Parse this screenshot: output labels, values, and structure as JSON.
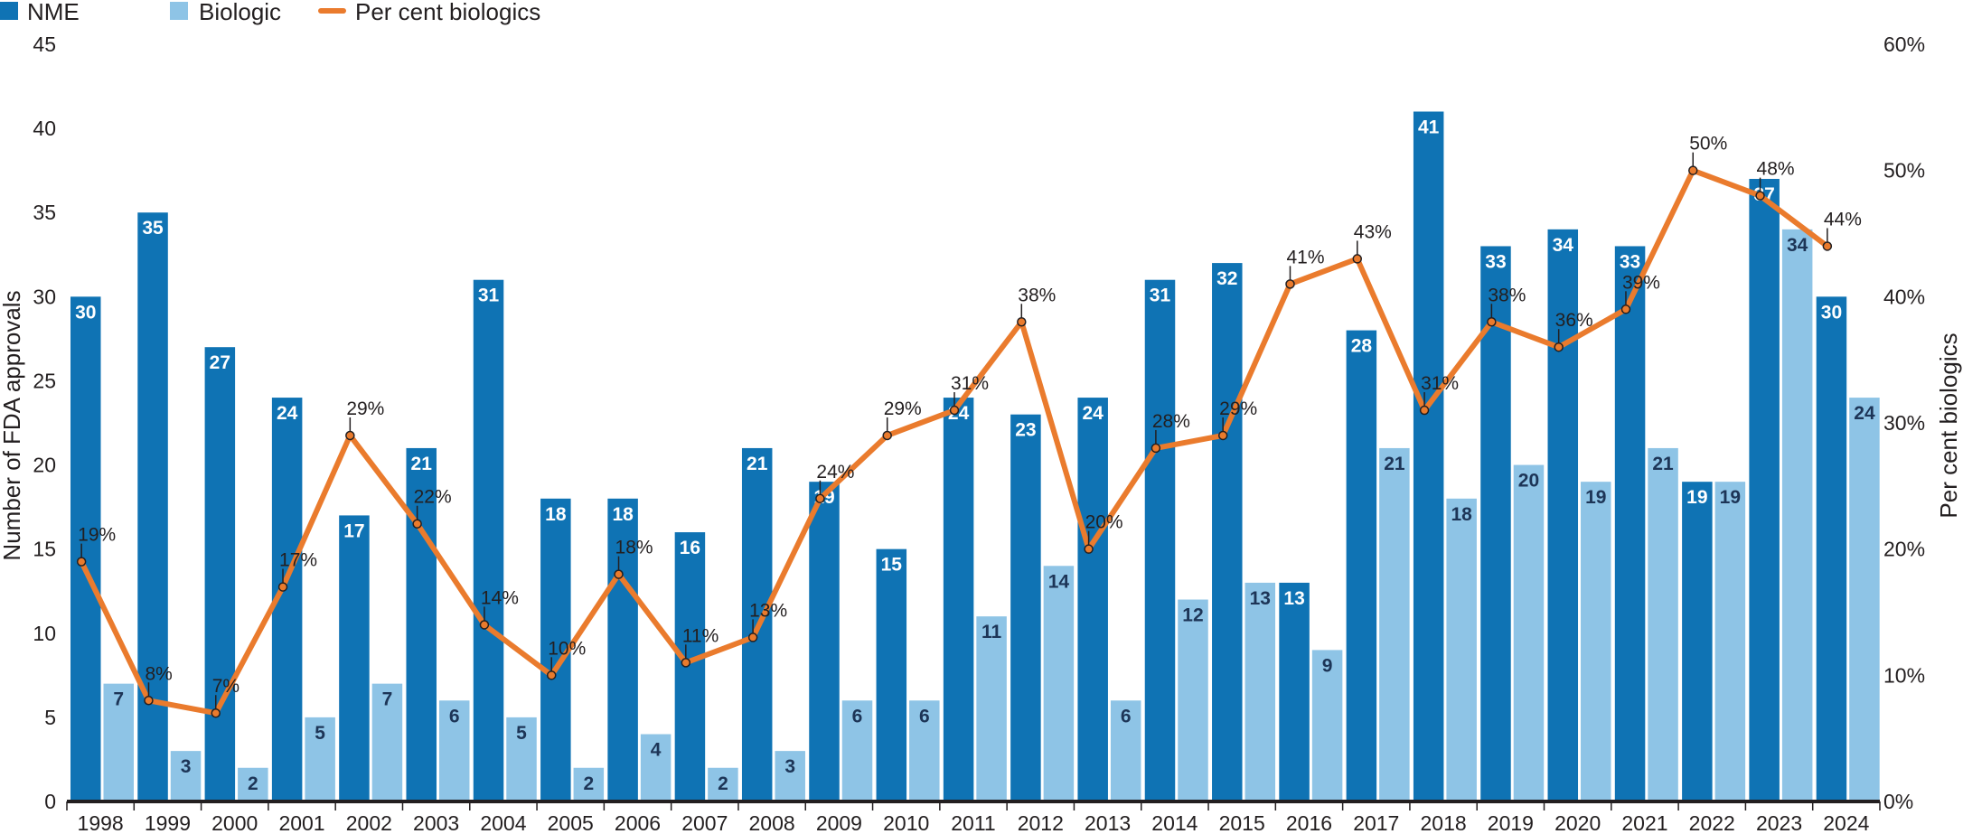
{
  "colors": {
    "nme": "#0f73b4",
    "biologic": "#8ec4e6",
    "percent": "#ea7b2d",
    "axis": "#231f20"
  },
  "legend": {
    "nme": "NME",
    "biologic": "Biologic",
    "percent": "Per cent biologics"
  },
  "chart_data": {
    "type": "bar",
    "categories": [
      "1998",
      "1999",
      "2000",
      "2001",
      "2002",
      "2003",
      "2004",
      "2005",
      "2006",
      "2007",
      "2008",
      "2009",
      "2010",
      "2011",
      "2012",
      "2013",
      "2014",
      "2015",
      "2016",
      "2017",
      "2018",
      "2019",
      "2020",
      "2021",
      "2022",
      "2023",
      "2024"
    ],
    "series": [
      {
        "name": "NME",
        "type": "bar",
        "axis": "left",
        "values": [
          30,
          35,
          27,
          24,
          17,
          21,
          31,
          18,
          18,
          16,
          21,
          19,
          15,
          24,
          23,
          24,
          31,
          32,
          13,
          28,
          41,
          33,
          34,
          33,
          19,
          37,
          30
        ]
      },
      {
        "name": "Biologic",
        "type": "bar",
        "axis": "left",
        "values": [
          7,
          3,
          2,
          5,
          7,
          6,
          5,
          2,
          4,
          2,
          3,
          6,
          6,
          11,
          14,
          6,
          12,
          13,
          9,
          21,
          18,
          20,
          19,
          21,
          19,
          34,
          24
        ]
      },
      {
        "name": "Per cent biologics",
        "type": "line",
        "axis": "right",
        "values": [
          19,
          8,
          7,
          17,
          29,
          22,
          14,
          10,
          18,
          11,
          13,
          24,
          29,
          31,
          38,
          20,
          28,
          29,
          41,
          43,
          31,
          38,
          36,
          39,
          50,
          48,
          44
        ]
      }
    ],
    "ylabel": "Number of FDA approvals",
    "y2label": "Per cent biologics",
    "ylim": [
      0,
      45
    ],
    "yticks": [
      "0",
      "5",
      "10",
      "15",
      "20",
      "25",
      "30",
      "35",
      "40",
      "45"
    ],
    "y2lim": [
      0,
      60
    ],
    "y2ticks": [
      "0%",
      "10%",
      "20%",
      "30%",
      "40%",
      "50%",
      "60%"
    ],
    "legend_position": "top-left",
    "grid": false
  }
}
